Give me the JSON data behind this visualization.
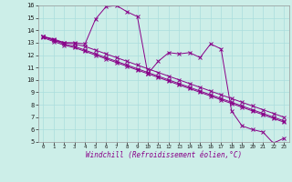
{
  "xlabel": "Windchill (Refroidissement éolien,°C)",
  "bg_color": "#cceee8",
  "grid_color": "#aadddd",
  "line_color": "#880088",
  "x_data": [
    0,
    1,
    2,
    3,
    4,
    5,
    6,
    7,
    8,
    9,
    10,
    11,
    12,
    13,
    14,
    15,
    16,
    17,
    18,
    19,
    20,
    21,
    22,
    23
  ],
  "line1": [
    13.5,
    13.3,
    13.0,
    13.0,
    12.9,
    14.9,
    15.9,
    16.0,
    15.5,
    15.1,
    10.5,
    11.5,
    12.2,
    12.1,
    12.2,
    11.8,
    12.9,
    12.5,
    7.5,
    6.3,
    6.0,
    5.8,
    4.9,
    5.3
  ],
  "line2": [
    13.5,
    13.2,
    13.0,
    12.9,
    12.7,
    12.4,
    12.1,
    11.8,
    11.5,
    11.2,
    10.9,
    10.6,
    10.3,
    10.0,
    9.7,
    9.4,
    9.1,
    8.8,
    8.5,
    8.2,
    7.9,
    7.6,
    7.3,
    7.0
  ],
  "line3": [
    13.5,
    13.2,
    12.9,
    12.7,
    12.4,
    12.1,
    11.8,
    11.5,
    11.2,
    10.9,
    10.6,
    10.3,
    10.0,
    9.7,
    9.4,
    9.1,
    8.8,
    8.5,
    8.2,
    7.9,
    7.6,
    7.3,
    7.0,
    6.7
  ],
  "line4": [
    13.4,
    13.1,
    12.8,
    12.6,
    12.3,
    12.0,
    11.7,
    11.4,
    11.1,
    10.8,
    10.5,
    10.2,
    9.9,
    9.6,
    9.3,
    9.0,
    8.7,
    8.4,
    8.1,
    7.8,
    7.5,
    7.2,
    6.9,
    6.6
  ],
  "ylim": [
    5,
    16
  ],
  "xlim": [
    -0.5,
    23.5
  ],
  "yticks": [
    5,
    6,
    7,
    8,
    9,
    10,
    11,
    12,
    13,
    14,
    15,
    16
  ],
  "xticks": [
    0,
    1,
    2,
    3,
    4,
    5,
    6,
    7,
    8,
    9,
    10,
    11,
    12,
    13,
    14,
    15,
    16,
    17,
    18,
    19,
    20,
    21,
    22,
    23
  ],
  "xlabel_fontsize": 5.5,
  "tick_fontsize_x": 4.2,
  "tick_fontsize_y": 5.0
}
